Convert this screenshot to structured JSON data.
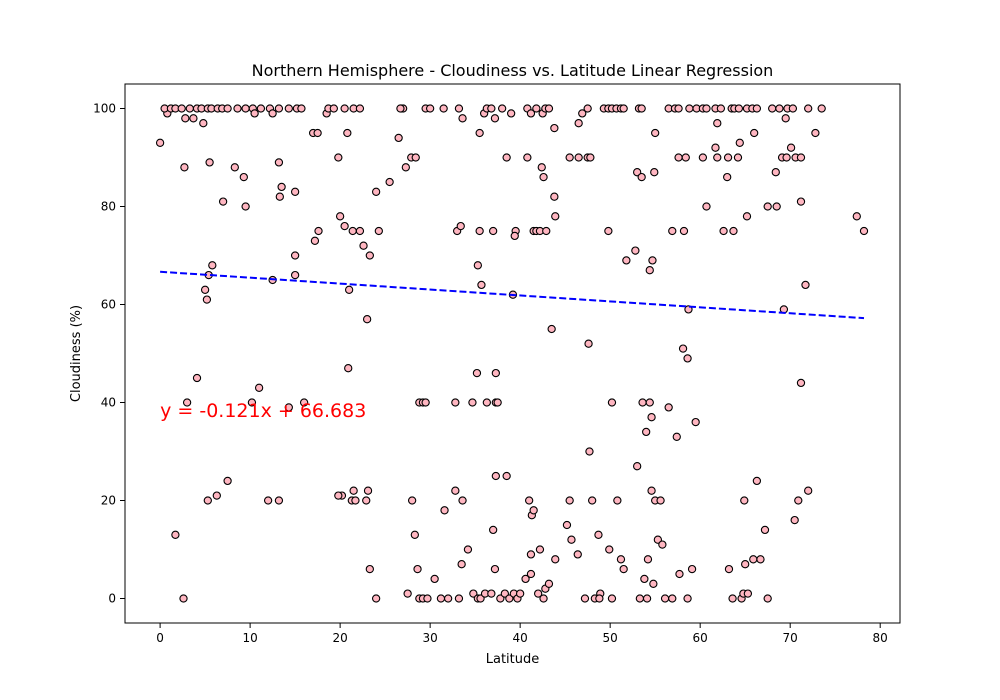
{
  "chart_data": {
    "type": "scatter",
    "title": "Northern Hemisphere - Cloudiness vs. Latitude Linear Regression",
    "xlabel": "Latitude",
    "ylabel": "Cloudiness (%)",
    "xlim": [
      -3.9,
      82.2
    ],
    "ylim": [
      -5,
      105
    ],
    "xticks": [
      0,
      10,
      20,
      30,
      40,
      50,
      60,
      70,
      80
    ],
    "yticks": [
      0,
      20,
      40,
      60,
      80,
      100
    ],
    "grid": false,
    "colors": {
      "marker_fill": "#ffb6c1",
      "marker_edge": "#000000",
      "regression_line": "#0000ff",
      "equation_text": "#ff0000"
    },
    "regression": {
      "slope": -0.121,
      "intercept": 66.683,
      "x_range": [
        0,
        78.2
      ],
      "equation_label": "y = -0.121x + 66.683",
      "label_anchor": [
        0,
        37
      ]
    },
    "series": [
      {
        "points": [
          [
            0,
            93
          ],
          [
            0.8,
            99
          ],
          [
            0.5,
            100
          ],
          [
            1.2,
            100
          ],
          [
            1.7,
            100
          ],
          [
            2.4,
            100
          ],
          [
            2.7,
            88
          ],
          [
            2.8,
            98
          ],
          [
            3.3,
            100
          ],
          [
            3.7,
            98
          ],
          [
            4.1,
            100
          ],
          [
            4.6,
            100
          ],
          [
            4.8,
            97
          ],
          [
            5.3,
            100
          ],
          [
            5.5,
            89
          ],
          [
            5.7,
            100
          ],
          [
            6.4,
            100
          ],
          [
            6.9,
            100
          ],
          [
            7.5,
            100
          ],
          [
            8.3,
            88
          ],
          [
            8.6,
            100
          ],
          [
            9.3,
            86
          ],
          [
            9.5,
            100
          ],
          [
            10.3,
            100
          ],
          [
            10.5,
            99
          ],
          [
            11.2,
            100
          ],
          [
            12.2,
            100
          ],
          [
            12.5,
            99
          ],
          [
            13.2,
            100
          ],
          [
            14.3,
            100
          ],
          [
            15.2,
            100
          ],
          [
            15.7,
            100
          ],
          [
            17,
            95
          ],
          [
            17.5,
            95
          ],
          [
            18.5,
            99
          ],
          [
            18.7,
            100
          ],
          [
            19.3,
            100
          ],
          [
            20.5,
            100
          ],
          [
            20.8,
            95
          ],
          [
            21.5,
            100
          ],
          [
            22.2,
            100
          ],
          [
            26.5,
            94
          ],
          [
            26.8,
            100
          ],
          [
            27,
            100
          ],
          [
            29.5,
            100
          ],
          [
            30,
            100
          ],
          [
            31.5,
            100
          ],
          [
            33.2,
            100
          ],
          [
            33.6,
            98
          ],
          [
            35.5,
            95
          ],
          [
            36,
            99
          ],
          [
            36.3,
            100
          ],
          [
            36.8,
            100
          ],
          [
            37.2,
            98
          ],
          [
            38,
            100
          ],
          [
            39,
            99
          ],
          [
            40.8,
            100
          ],
          [
            41.2,
            99
          ],
          [
            41.8,
            100
          ],
          [
            42.5,
            99
          ],
          [
            42.8,
            100
          ],
          [
            43.2,
            100
          ],
          [
            43.8,
            96
          ],
          [
            46.5,
            97
          ],
          [
            46.9,
            99
          ],
          [
            47.5,
            100
          ],
          [
            49.3,
            100
          ],
          [
            49.8,
            100
          ],
          [
            50.2,
            100
          ],
          [
            50.7,
            100
          ],
          [
            51.2,
            100
          ],
          [
            51.5,
            100
          ],
          [
            53.2,
            100
          ],
          [
            53.5,
            100
          ],
          [
            55,
            95
          ],
          [
            56.5,
            100
          ],
          [
            57.2,
            100
          ],
          [
            57.6,
            100
          ],
          [
            58.8,
            100
          ],
          [
            59.6,
            100
          ],
          [
            60.3,
            100
          ],
          [
            60.7,
            100
          ],
          [
            61.7,
            100
          ],
          [
            61.9,
            97
          ],
          [
            62.3,
            100
          ],
          [
            63.5,
            100
          ],
          [
            63.8,
            100
          ],
          [
            64.3,
            100
          ],
          [
            65.2,
            100
          ],
          [
            65.8,
            100
          ],
          [
            66,
            95
          ],
          [
            66.3,
            100
          ],
          [
            68,
            100
          ],
          [
            68.8,
            100
          ],
          [
            69.5,
            98
          ],
          [
            69.7,
            100
          ],
          [
            70.3,
            100
          ],
          [
            72,
            100
          ],
          [
            72.8,
            95
          ],
          [
            73.5,
            100
          ],
          [
            9.5,
            80
          ],
          [
            7,
            81
          ],
          [
            5.8,
            68
          ],
          [
            5.4,
            66
          ],
          [
            5,
            63
          ],
          [
            5.2,
            61
          ],
          [
            12.5,
            65
          ],
          [
            13.3,
            82
          ],
          [
            13.5,
            84
          ],
          [
            13.2,
            89
          ],
          [
            15,
            83
          ],
          [
            15,
            70
          ],
          [
            15,
            66
          ],
          [
            17.2,
            73
          ],
          [
            17.6,
            75
          ],
          [
            20,
            78
          ],
          [
            20.5,
            76
          ],
          [
            21.4,
            75
          ],
          [
            22.2,
            75
          ],
          [
            22.6,
            72
          ],
          [
            23.3,
            70
          ],
          [
            19.8,
            90
          ],
          [
            24,
            83
          ],
          [
            24.3,
            75
          ],
          [
            25.5,
            85
          ],
          [
            26.7,
            100
          ],
          [
            27.3,
            88
          ],
          [
            27.9,
            90
          ],
          [
            28.4,
            90
          ],
          [
            33,
            75
          ],
          [
            33.4,
            76
          ],
          [
            35.5,
            75
          ],
          [
            37,
            75
          ],
          [
            35.3,
            68
          ],
          [
            35.7,
            64
          ],
          [
            38.5,
            90
          ],
          [
            39.5,
            75
          ],
          [
            39.4,
            74
          ],
          [
            40.8,
            90
          ],
          [
            41.5,
            75
          ],
          [
            41.8,
            75
          ],
          [
            42.2,
            75
          ],
          [
            42.4,
            88
          ],
          [
            42.6,
            86
          ],
          [
            42.9,
            75
          ],
          [
            43.8,
            82
          ],
          [
            43.9,
            78
          ],
          [
            45.5,
            90
          ],
          [
            46.5,
            90
          ],
          [
            47.5,
            90
          ],
          [
            47.8,
            90
          ],
          [
            49.8,
            75
          ],
          [
            52.8,
            71
          ],
          [
            51.8,
            69
          ],
          [
            53,
            87
          ],
          [
            53.5,
            86
          ],
          [
            54.9,
            87
          ],
          [
            54.7,
            69
          ],
          [
            54.4,
            67
          ],
          [
            56.9,
            75
          ],
          [
            58.2,
            75
          ],
          [
            57.6,
            90
          ],
          [
            58.4,
            90
          ],
          [
            60.3,
            90
          ],
          [
            60.7,
            80
          ],
          [
            61.7,
            92
          ],
          [
            61.9,
            90
          ],
          [
            62.6,
            75
          ],
          [
            63,
            86
          ],
          [
            63.1,
            90
          ],
          [
            63.7,
            75
          ],
          [
            64.2,
            90
          ],
          [
            64.4,
            93
          ],
          [
            65.2,
            78
          ],
          [
            67.5,
            80
          ],
          [
            68.5,
            80
          ],
          [
            68.4,
            87
          ],
          [
            69.1,
            90
          ],
          [
            69.6,
            90
          ],
          [
            70.1,
            92
          ],
          [
            70.6,
            90
          ],
          [
            71.2,
            90
          ],
          [
            71.2,
            81
          ],
          [
            71.7,
            64
          ],
          [
            69.3,
            59
          ],
          [
            58.7,
            59
          ],
          [
            77.4,
            78
          ],
          [
            78.2,
            75
          ],
          [
            20.2,
            21
          ],
          [
            19.8,
            21
          ],
          [
            1.7,
            13
          ],
          [
            2.6,
            0
          ],
          [
            4.1,
            45
          ],
          [
            3,
            40
          ],
          [
            5.3,
            20
          ],
          [
            6.3,
            21
          ],
          [
            7.5,
            24
          ],
          [
            11,
            43
          ],
          [
            10.2,
            40
          ],
          [
            12,
            20
          ],
          [
            13.2,
            20
          ],
          [
            14.3,
            39
          ],
          [
            16,
            40
          ],
          [
            20.9,
            47
          ],
          [
            21,
            63
          ],
          [
            21.3,
            20
          ],
          [
            21.5,
            22
          ],
          [
            21.7,
            20
          ],
          [
            23,
            57
          ],
          [
            22.9,
            20
          ],
          [
            23.1,
            22
          ],
          [
            23.3,
            6
          ],
          [
            24,
            0
          ],
          [
            27.5,
            1
          ],
          [
            28,
            20
          ],
          [
            28.3,
            13
          ],
          [
            28.6,
            6
          ],
          [
            28.8,
            40
          ],
          [
            29.2,
            40
          ],
          [
            29.5,
            40
          ],
          [
            28.8,
            0
          ],
          [
            29.2,
            0
          ],
          [
            29.7,
            0
          ],
          [
            30.5,
            4
          ],
          [
            31.2,
            0
          ],
          [
            31.6,
            18
          ],
          [
            32,
            0
          ],
          [
            32.8,
            22
          ],
          [
            32.8,
            40
          ],
          [
            33.2,
            0
          ],
          [
            33.6,
            20
          ],
          [
            33.5,
            7
          ],
          [
            34.2,
            10
          ],
          [
            34.7,
            40
          ],
          [
            34.8,
            1
          ],
          [
            35.2,
            46
          ],
          [
            35.3,
            0
          ],
          [
            35.6,
            0
          ],
          [
            36.1,
            1
          ],
          [
            36.3,
            40
          ],
          [
            36.8,
            1
          ],
          [
            37,
            14
          ],
          [
            37.3,
            25
          ],
          [
            37.3,
            46
          ],
          [
            37.3,
            40
          ],
          [
            37.5,
            40
          ],
          [
            37.2,
            6
          ],
          [
            37.8,
            0
          ],
          [
            38.3,
            1
          ],
          [
            38.5,
            25
          ],
          [
            38.8,
            0
          ],
          [
            39.2,
            62
          ],
          [
            39.3,
            1
          ],
          [
            39.7,
            0
          ],
          [
            40,
            1
          ],
          [
            40.6,
            4
          ],
          [
            41,
            20
          ],
          [
            41.2,
            9
          ],
          [
            41.3,
            17
          ],
          [
            41.5,
            18
          ],
          [
            41.2,
            5
          ],
          [
            42,
            1
          ],
          [
            42.2,
            10
          ],
          [
            42.6,
            0
          ],
          [
            42.8,
            2
          ],
          [
            43.2,
            3
          ],
          [
            43.5,
            55
          ],
          [
            43.9,
            8
          ],
          [
            45.2,
            15
          ],
          [
            45.5,
            20
          ],
          [
            45.7,
            12
          ],
          [
            46.4,
            9
          ],
          [
            47.2,
            0
          ],
          [
            47.6,
            52
          ],
          [
            47.7,
            30
          ],
          [
            48,
            20
          ],
          [
            48.3,
            0
          ],
          [
            48.7,
            13
          ],
          [
            48.9,
            1
          ],
          [
            48.8,
            0
          ],
          [
            49.9,
            10
          ],
          [
            50.2,
            40
          ],
          [
            50.2,
            0
          ],
          [
            50.8,
            20
          ],
          [
            51.2,
            8
          ],
          [
            51.5,
            6
          ],
          [
            53,
            27
          ],
          [
            53.3,
            0
          ],
          [
            53.6,
            40
          ],
          [
            53.8,
            4
          ],
          [
            54,
            34
          ],
          [
            54.1,
            0
          ],
          [
            54.2,
            8
          ],
          [
            54.4,
            40
          ],
          [
            54.6,
            37
          ],
          [
            54.6,
            22
          ],
          [
            54.8,
            3
          ],
          [
            55,
            20
          ],
          [
            55.3,
            12
          ],
          [
            55.6,
            20
          ],
          [
            55.8,
            11
          ],
          [
            56.1,
            0
          ],
          [
            56.5,
            39
          ],
          [
            56.9,
            0
          ],
          [
            57.4,
            33
          ],
          [
            57.7,
            5
          ],
          [
            58.1,
            51
          ],
          [
            58.6,
            49
          ],
          [
            58.6,
            0
          ],
          [
            59.1,
            6
          ],
          [
            59.5,
            36
          ],
          [
            63.2,
            6
          ],
          [
            63.6,
            0
          ],
          [
            64.6,
            0
          ],
          [
            64.8,
            1
          ],
          [
            64.9,
            20
          ],
          [
            65.3,
            1
          ],
          [
            65,
            7
          ],
          [
            65.9,
            8
          ],
          [
            66.3,
            24
          ],
          [
            66.7,
            8
          ],
          [
            67.2,
            14
          ],
          [
            67.5,
            0
          ],
          [
            70.5,
            16
          ],
          [
            70.9,
            20
          ],
          [
            71.2,
            44
          ],
          [
            72,
            22
          ]
        ]
      }
    ]
  }
}
